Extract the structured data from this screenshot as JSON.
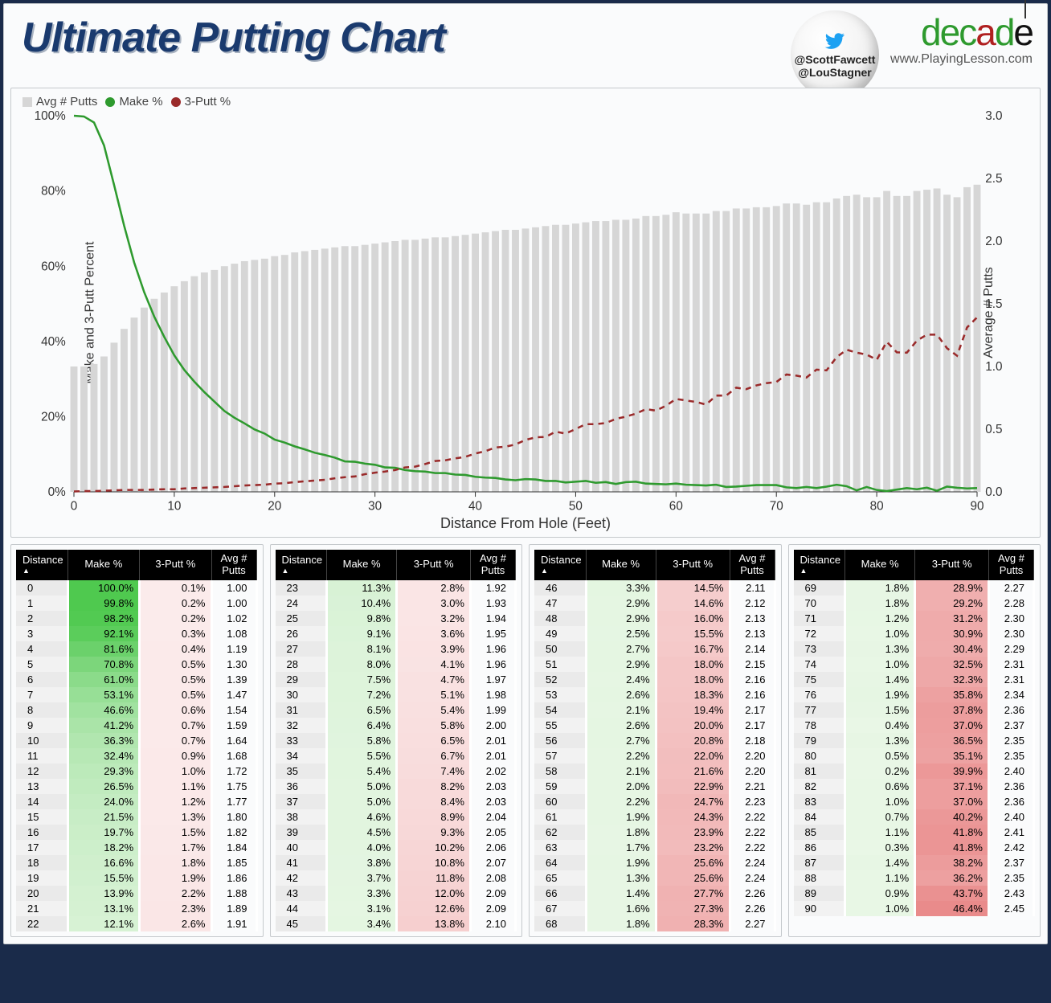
{
  "header": {
    "title": "Ultimate Putting Chart",
    "twitter1": "@ScottFawcett",
    "twitter2": "@LouStagner",
    "brand_url": "www.PlayingLesson.com"
  },
  "chart": {
    "legend": [
      {
        "label": "Avg # Putts",
        "color": "#d6d6d6",
        "shape": "square"
      },
      {
        "label": "Make %",
        "color": "#2e9a2e",
        "shape": "circle"
      },
      {
        "label": "3-Putt %",
        "color": "#9a2a2a",
        "shape": "circle"
      }
    ],
    "x_label": "Distance From Hole (Feet)",
    "y_label_left": "Make and 3-Putt Percent",
    "y_label_right": "Average # Putts",
    "x_range": [
      0,
      90
    ],
    "x_ticks": [
      0,
      10,
      20,
      30,
      40,
      50,
      60,
      70,
      80,
      90
    ],
    "y_left_range": [
      0,
      100
    ],
    "y_left_ticks": [
      0,
      20,
      40,
      60,
      80,
      100
    ],
    "y_left_suffix": "%",
    "y_right_range": [
      0,
      3.0
    ],
    "y_right_ticks": [
      0.0,
      0.5,
      1.0,
      1.5,
      2.0,
      2.5,
      3.0
    ],
    "colors": {
      "bars": "#d6d6d6",
      "make_line": "#2e9a2e",
      "putt3_line": "#9a2a2a",
      "axis": "#333333",
      "grid": "#e6e6e6",
      "background": "#ffffff"
    },
    "line_width": 2.5,
    "putt3_dash": "7 6"
  },
  "table_columns": [
    "Distance",
    "Make %",
    "3-Putt %",
    "Avg # Putts"
  ],
  "cell_colors": {
    "make_max": "#4fc94f",
    "make_min": "#e9f7e6",
    "putt3_min": "#fbebeb",
    "putt3_max": "#e98b8b",
    "avg_bg": "#ffffff",
    "dist_bg": "#eaeaea"
  },
  "rows": [
    {
      "d": 0,
      "m": 100.0,
      "p3": 0.1,
      "a": 1.0
    },
    {
      "d": 1,
      "m": 99.8,
      "p3": 0.2,
      "a": 1.0
    },
    {
      "d": 2,
      "m": 98.2,
      "p3": 0.2,
      "a": 1.02
    },
    {
      "d": 3,
      "m": 92.1,
      "p3": 0.3,
      "a": 1.08
    },
    {
      "d": 4,
      "m": 81.6,
      "p3": 0.4,
      "a": 1.19
    },
    {
      "d": 5,
      "m": 70.8,
      "p3": 0.5,
      "a": 1.3
    },
    {
      "d": 6,
      "m": 61.0,
      "p3": 0.5,
      "a": 1.39
    },
    {
      "d": 7,
      "m": 53.1,
      "p3": 0.5,
      "a": 1.47
    },
    {
      "d": 8,
      "m": 46.6,
      "p3": 0.6,
      "a": 1.54
    },
    {
      "d": 9,
      "m": 41.2,
      "p3": 0.7,
      "a": 1.59
    },
    {
      "d": 10,
      "m": 36.3,
      "p3": 0.7,
      "a": 1.64
    },
    {
      "d": 11,
      "m": 32.4,
      "p3": 0.9,
      "a": 1.68
    },
    {
      "d": 12,
      "m": 29.3,
      "p3": 1.0,
      "a": 1.72
    },
    {
      "d": 13,
      "m": 26.5,
      "p3": 1.1,
      "a": 1.75
    },
    {
      "d": 14,
      "m": 24.0,
      "p3": 1.2,
      "a": 1.77
    },
    {
      "d": 15,
      "m": 21.5,
      "p3": 1.3,
      "a": 1.8
    },
    {
      "d": 16,
      "m": 19.7,
      "p3": 1.5,
      "a": 1.82
    },
    {
      "d": 17,
      "m": 18.2,
      "p3": 1.7,
      "a": 1.84
    },
    {
      "d": 18,
      "m": 16.6,
      "p3": 1.8,
      "a": 1.85
    },
    {
      "d": 19,
      "m": 15.5,
      "p3": 1.9,
      "a": 1.86
    },
    {
      "d": 20,
      "m": 13.9,
      "p3": 2.2,
      "a": 1.88
    },
    {
      "d": 21,
      "m": 13.1,
      "p3": 2.3,
      "a": 1.89
    },
    {
      "d": 22,
      "m": 12.1,
      "p3": 2.6,
      "a": 1.91
    },
    {
      "d": 23,
      "m": 11.3,
      "p3": 2.8,
      "a": 1.92
    },
    {
      "d": 24,
      "m": 10.4,
      "p3": 3.0,
      "a": 1.93
    },
    {
      "d": 25,
      "m": 9.8,
      "p3": 3.2,
      "a": 1.94
    },
    {
      "d": 26,
      "m": 9.1,
      "p3": 3.6,
      "a": 1.95
    },
    {
      "d": 27,
      "m": 8.1,
      "p3": 3.9,
      "a": 1.96
    },
    {
      "d": 28,
      "m": 8.0,
      "p3": 4.1,
      "a": 1.96
    },
    {
      "d": 29,
      "m": 7.5,
      "p3": 4.7,
      "a": 1.97
    },
    {
      "d": 30,
      "m": 7.2,
      "p3": 5.1,
      "a": 1.98
    },
    {
      "d": 31,
      "m": 6.5,
      "p3": 5.4,
      "a": 1.99
    },
    {
      "d": 32,
      "m": 6.4,
      "p3": 5.8,
      "a": 2.0
    },
    {
      "d": 33,
      "m": 5.8,
      "p3": 6.5,
      "a": 2.01
    },
    {
      "d": 34,
      "m": 5.5,
      "p3": 6.7,
      "a": 2.01
    },
    {
      "d": 35,
      "m": 5.4,
      "p3": 7.4,
      "a": 2.02
    },
    {
      "d": 36,
      "m": 5.0,
      "p3": 8.2,
      "a": 2.03
    },
    {
      "d": 37,
      "m": 5.0,
      "p3": 8.4,
      "a": 2.03
    },
    {
      "d": 38,
      "m": 4.6,
      "p3": 8.9,
      "a": 2.04
    },
    {
      "d": 39,
      "m": 4.5,
      "p3": 9.3,
      "a": 2.05
    },
    {
      "d": 40,
      "m": 4.0,
      "p3": 10.2,
      "a": 2.06
    },
    {
      "d": 41,
      "m": 3.8,
      "p3": 10.8,
      "a": 2.07
    },
    {
      "d": 42,
      "m": 3.7,
      "p3": 11.8,
      "a": 2.08
    },
    {
      "d": 43,
      "m": 3.3,
      "p3": 12.0,
      "a": 2.09
    },
    {
      "d": 44,
      "m": 3.1,
      "p3": 12.6,
      "a": 2.09
    },
    {
      "d": 45,
      "m": 3.4,
      "p3": 13.8,
      "a": 2.1
    },
    {
      "d": 46,
      "m": 3.3,
      "p3": 14.5,
      "a": 2.11
    },
    {
      "d": 47,
      "m": 2.9,
      "p3": 14.6,
      "a": 2.12
    },
    {
      "d": 48,
      "m": 2.9,
      "p3": 16.0,
      "a": 2.13
    },
    {
      "d": 49,
      "m": 2.5,
      "p3": 15.5,
      "a": 2.13
    },
    {
      "d": 50,
      "m": 2.7,
      "p3": 16.7,
      "a": 2.14
    },
    {
      "d": 51,
      "m": 2.9,
      "p3": 18.0,
      "a": 2.15
    },
    {
      "d": 52,
      "m": 2.4,
      "p3": 18.0,
      "a": 2.16
    },
    {
      "d": 53,
      "m": 2.6,
      "p3": 18.3,
      "a": 2.16
    },
    {
      "d": 54,
      "m": 2.1,
      "p3": 19.4,
      "a": 2.17
    },
    {
      "d": 55,
      "m": 2.6,
      "p3": 20.0,
      "a": 2.17
    },
    {
      "d": 56,
      "m": 2.7,
      "p3": 20.8,
      "a": 2.18
    },
    {
      "d": 57,
      "m": 2.2,
      "p3": 22.0,
      "a": 2.2
    },
    {
      "d": 58,
      "m": 2.1,
      "p3": 21.6,
      "a": 2.2
    },
    {
      "d": 59,
      "m": 2.0,
      "p3": 22.9,
      "a": 2.21
    },
    {
      "d": 60,
      "m": 2.2,
      "p3": 24.7,
      "a": 2.23
    },
    {
      "d": 61,
      "m": 1.9,
      "p3": 24.3,
      "a": 2.22
    },
    {
      "d": 62,
      "m": 1.8,
      "p3": 23.9,
      "a": 2.22
    },
    {
      "d": 63,
      "m": 1.7,
      "p3": 23.2,
      "a": 2.22
    },
    {
      "d": 64,
      "m": 1.9,
      "p3": 25.6,
      "a": 2.24
    },
    {
      "d": 65,
      "m": 1.3,
      "p3": 25.6,
      "a": 2.24
    },
    {
      "d": 66,
      "m": 1.4,
      "p3": 27.7,
      "a": 2.26
    },
    {
      "d": 67,
      "m": 1.6,
      "p3": 27.3,
      "a": 2.26
    },
    {
      "d": 68,
      "m": 1.8,
      "p3": 28.3,
      "a": 2.27
    },
    {
      "d": 69,
      "m": 1.8,
      "p3": 28.9,
      "a": 2.27
    },
    {
      "d": 70,
      "m": 1.8,
      "p3": 29.2,
      "a": 2.28
    },
    {
      "d": 71,
      "m": 1.2,
      "p3": 31.2,
      "a": 2.3
    },
    {
      "d": 72,
      "m": 1.0,
      "p3": 30.9,
      "a": 2.3
    },
    {
      "d": 73,
      "m": 1.3,
      "p3": 30.4,
      "a": 2.29
    },
    {
      "d": 74,
      "m": 1.0,
      "p3": 32.5,
      "a": 2.31
    },
    {
      "d": 75,
      "m": 1.4,
      "p3": 32.3,
      "a": 2.31
    },
    {
      "d": 76,
      "m": 1.9,
      "p3": 35.8,
      "a": 2.34
    },
    {
      "d": 77,
      "m": 1.5,
      "p3": 37.8,
      "a": 2.36
    },
    {
      "d": 78,
      "m": 0.4,
      "p3": 37.0,
      "a": 2.37
    },
    {
      "d": 79,
      "m": 1.3,
      "p3": 36.5,
      "a": 2.35
    },
    {
      "d": 80,
      "m": 0.5,
      "p3": 35.1,
      "a": 2.35
    },
    {
      "d": 81,
      "m": 0.2,
      "p3": 39.9,
      "a": 2.4
    },
    {
      "d": 82,
      "m": 0.6,
      "p3": 37.1,
      "a": 2.36
    },
    {
      "d": 83,
      "m": 1.0,
      "p3": 37.0,
      "a": 2.36
    },
    {
      "d": 84,
      "m": 0.7,
      "p3": 40.2,
      "a": 2.4
    },
    {
      "d": 85,
      "m": 1.1,
      "p3": 41.8,
      "a": 2.41
    },
    {
      "d": 86,
      "m": 0.3,
      "p3": 41.8,
      "a": 2.42
    },
    {
      "d": 87,
      "m": 1.4,
      "p3": 38.2,
      "a": 2.37
    },
    {
      "d": 88,
      "m": 1.1,
      "p3": 36.2,
      "a": 2.35
    },
    {
      "d": 89,
      "m": 0.9,
      "p3": 43.7,
      "a": 2.43
    },
    {
      "d": 90,
      "m": 1.0,
      "p3": 46.4,
      "a": 2.45
    }
  ]
}
